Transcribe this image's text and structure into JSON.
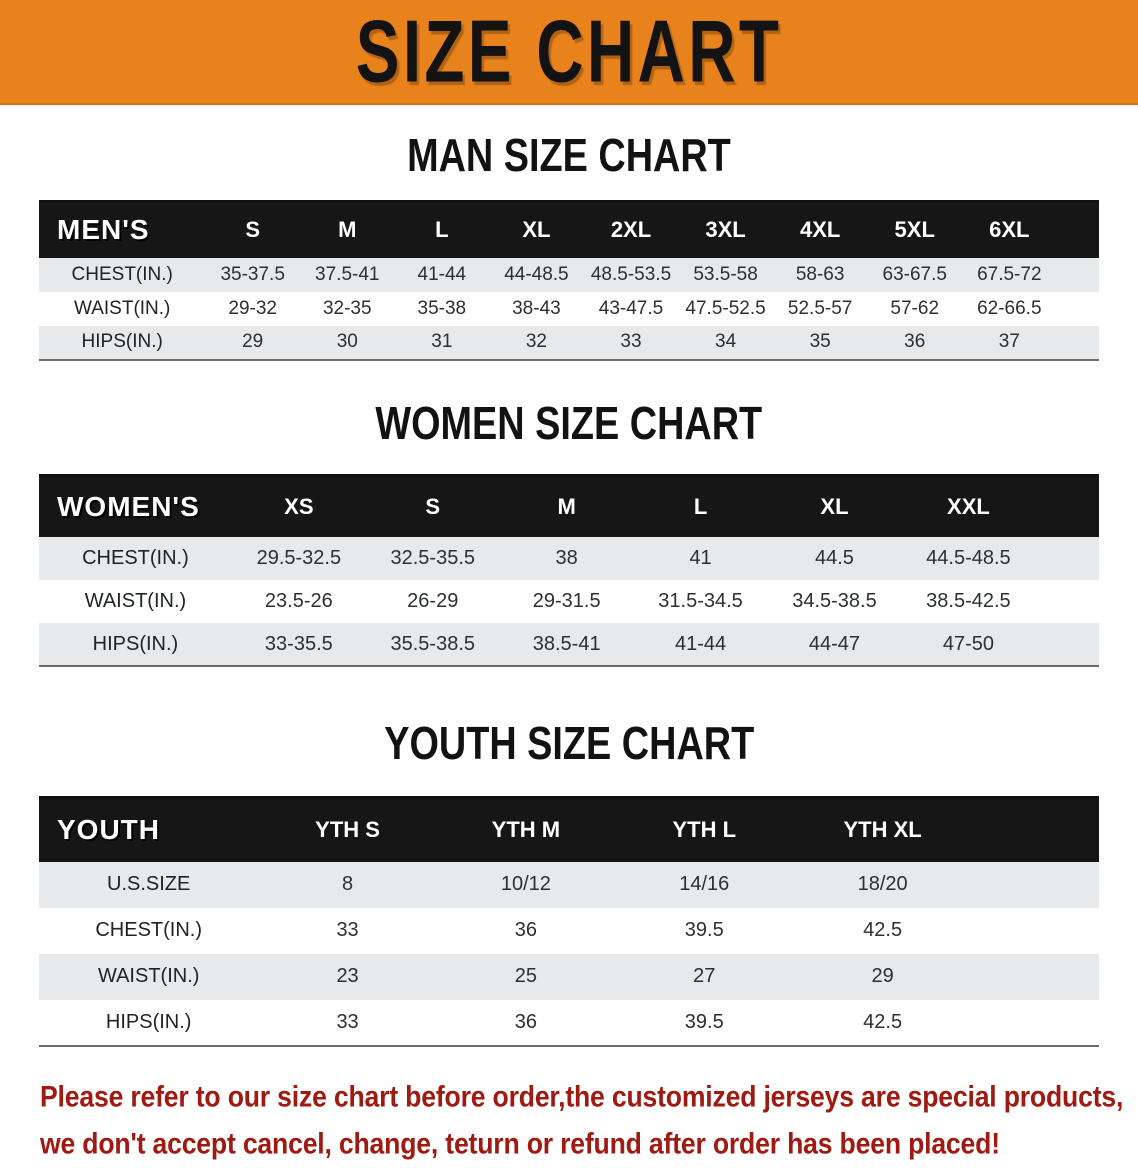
{
  "banner": {
    "title": "SIZE CHART",
    "background_color": "#E8821C",
    "text_color": "#131313"
  },
  "colors": {
    "header_band": "#161616",
    "stripe_gray": "#E7E9EA",
    "stripe_white": "#FFFFFF",
    "disclaimer_red": "#A01A12"
  },
  "sections": [
    {
      "heading": "MAN SIZE CHART",
      "header_label": "MEN'S",
      "columns": [
        "S",
        "M",
        "L",
        "XL",
        "2XL",
        "3XL",
        "4XL",
        "5XL",
        "6XL"
      ],
      "rows": [
        {
          "label": "CHEST(IN.)",
          "values": [
            "35-37.5",
            "37.5-41",
            "41-44",
            "44-48.5",
            "48.5-53.5",
            "53.5-58",
            "58-63",
            "63-67.5",
            "67.5-72"
          ]
        },
        {
          "label": "WAIST(IN.)",
          "values": [
            "29-32",
            "32-35",
            "35-38",
            "38-43",
            "43-47.5",
            "47.5-52.5",
            "52.5-57",
            "57-62",
            "62-66.5"
          ]
        },
        {
          "label": "HIPS(IN.)",
          "values": [
            "29",
            "30",
            "31",
            "32",
            "33",
            "34",
            "35",
            "36",
            "37"
          ]
        }
      ]
    },
    {
      "heading": "WOMEN SIZE CHART",
      "header_label": "WOMEN'S",
      "columns": [
        "XS",
        "S",
        "M",
        "L",
        "XL",
        "XXL"
      ],
      "rows": [
        {
          "label": "CHEST(IN.)",
          "values": [
            "29.5-32.5",
            "32.5-35.5",
            "38",
            "41",
            "44.5",
            "44.5-48.5"
          ]
        },
        {
          "label": "WAIST(IN.)",
          "values": [
            "23.5-26",
            "26-29",
            "29-31.5",
            "31.5-34.5",
            "34.5-38.5",
            "38.5-42.5"
          ]
        },
        {
          "label": "HIPS(IN.)",
          "values": [
            "33-35.5",
            "35.5-38.5",
            "38.5-41",
            "41-44",
            "44-47",
            "47-50"
          ]
        }
      ]
    },
    {
      "heading": "YOUTH SIZE CHART",
      "header_label": "YOUTH",
      "columns": [
        "YTH S",
        "YTH M",
        "YTH L",
        "YTH XL"
      ],
      "rows": [
        {
          "label": "U.S.SIZE",
          "values": [
            "8",
            "10/12",
            "14/16",
            "18/20"
          ]
        },
        {
          "label": "CHEST(IN.)",
          "values": [
            "33",
            "36",
            "39.5",
            "42.5"
          ]
        },
        {
          "label": "WAIST(IN.)",
          "values": [
            "23",
            "25",
            "27",
            "29"
          ]
        },
        {
          "label": "HIPS(IN.)",
          "values": [
            "33",
            "36",
            "39.5",
            "42.5"
          ]
        }
      ]
    }
  ],
  "disclaimer": {
    "line1": "Please refer to our size chart before order,the customized jerseys are special products,",
    "line2": "we don't accept cancel, change, teturn or refund after order has been placed!"
  },
  "chart_data": [
    {
      "type": "table",
      "title": "MAN SIZE CHART",
      "columns": [
        "MEN'S",
        "S",
        "M",
        "L",
        "XL",
        "2XL",
        "3XL",
        "4XL",
        "5XL",
        "6XL"
      ],
      "rows": [
        [
          "CHEST(IN.)",
          "35-37.5",
          "37.5-41",
          "41-44",
          "44-48.5",
          "48.5-53.5",
          "53.5-58",
          "58-63",
          "63-67.5",
          "67.5-72"
        ],
        [
          "WAIST(IN.)",
          "29-32",
          "32-35",
          "35-38",
          "38-43",
          "43-47.5",
          "47.5-52.5",
          "52.5-57",
          "57-62",
          "62-66.5"
        ],
        [
          "HIPS(IN.)",
          "29",
          "30",
          "31",
          "32",
          "33",
          "34",
          "35",
          "36",
          "37"
        ]
      ]
    },
    {
      "type": "table",
      "title": "WOMEN SIZE CHART",
      "columns": [
        "WOMEN'S",
        "XS",
        "S",
        "M",
        "L",
        "XL",
        "XXL"
      ],
      "rows": [
        [
          "CHEST(IN.)",
          "29.5-32.5",
          "32.5-35.5",
          "38",
          "41",
          "44.5",
          "44.5-48.5"
        ],
        [
          "WAIST(IN.)",
          "23.5-26",
          "26-29",
          "29-31.5",
          "31.5-34.5",
          "34.5-38.5",
          "38.5-42.5"
        ],
        [
          "HIPS(IN.)",
          "33-35.5",
          "35.5-38.5",
          "38.5-41",
          "41-44",
          "44-47",
          "47-50"
        ]
      ]
    },
    {
      "type": "table",
      "title": "YOUTH SIZE CHART",
      "columns": [
        "YOUTH",
        "YTH S",
        "YTH M",
        "YTH L",
        "YTH XL"
      ],
      "rows": [
        [
          "U.S.SIZE",
          "8",
          "10/12",
          "14/16",
          "18/20"
        ],
        [
          "CHEST(IN.)",
          "33",
          "36",
          "39.5",
          "42.5"
        ],
        [
          "WAIST(IN.)",
          "23",
          "25",
          "27",
          "29"
        ],
        [
          "HIPS(IN.)",
          "33",
          "36",
          "39.5",
          "42.5"
        ]
      ]
    }
  ]
}
